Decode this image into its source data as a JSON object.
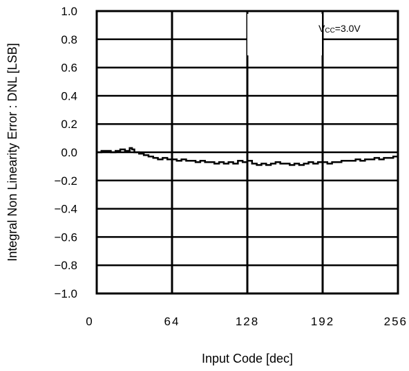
{
  "chart_data": {
    "type": "line",
    "xlabel": "Input Code [dec]",
    "ylabel": "Integral Non Linearity Error : DNL [LSB]",
    "xlim": [
      0,
      256
    ],
    "ylim": [
      -1.0,
      1.0
    ],
    "x_ticks": [
      0,
      64,
      128,
      192,
      256
    ],
    "x_tick_labels": [
      "0",
      "64",
      "128",
      "192",
      "256"
    ],
    "y_ticks": [
      -1.0,
      -0.8,
      -0.6,
      -0.4,
      -0.2,
      0.0,
      0.2,
      0.4,
      0.6,
      0.8,
      1.0
    ],
    "y_tick_labels": [
      "−1.0",
      "−0.8",
      "−0.6",
      "−0.4",
      "−0.2",
      "0.0",
      "0.2",
      "0.4",
      "0.6",
      "0.8",
      "1.0"
    ],
    "grid": true,
    "legend_position": "top-right",
    "annotation": {
      "prefix": "V",
      "subscript": "CC",
      "suffix": "=3.0V"
    },
    "series": [
      {
        "color": "#000000",
        "x": [
          0,
          4,
          8,
          12,
          16,
          20,
          24,
          28,
          30,
          32,
          36,
          40,
          44,
          48,
          52,
          56,
          60,
          64,
          68,
          72,
          76,
          80,
          84,
          88,
          92,
          96,
          100,
          104,
          108,
          112,
          116,
          120,
          124,
          128,
          132,
          136,
          140,
          144,
          148,
          152,
          156,
          160,
          164,
          168,
          172,
          176,
          180,
          184,
          188,
          192,
          196,
          200,
          204,
          208,
          212,
          216,
          220,
          224,
          228,
          232,
          236,
          240,
          244,
          248,
          252,
          256
        ],
        "y": [
          0.0,
          0.01,
          0.01,
          0.0,
          0.01,
          0.02,
          0.01,
          0.03,
          0.02,
          0.0,
          -0.01,
          -0.02,
          -0.03,
          -0.04,
          -0.05,
          -0.04,
          -0.05,
          -0.05,
          -0.06,
          -0.05,
          -0.06,
          -0.06,
          -0.07,
          -0.06,
          -0.07,
          -0.07,
          -0.08,
          -0.07,
          -0.08,
          -0.07,
          -0.08,
          -0.06,
          -0.07,
          -0.06,
          -0.08,
          -0.09,
          -0.08,
          -0.09,
          -0.08,
          -0.07,
          -0.08,
          -0.08,
          -0.09,
          -0.08,
          -0.09,
          -0.08,
          -0.07,
          -0.08,
          -0.07,
          -0.07,
          -0.08,
          -0.07,
          -0.07,
          -0.06,
          -0.06,
          -0.06,
          -0.05,
          -0.06,
          -0.05,
          -0.05,
          -0.04,
          -0.05,
          -0.04,
          -0.04,
          -0.03,
          -0.02
        ]
      }
    ]
  }
}
